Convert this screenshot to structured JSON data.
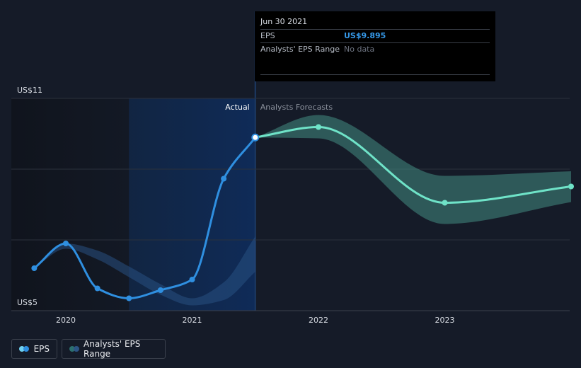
{
  "chart_data": {
    "type": "line",
    "x_label_years": [
      "2020",
      "2021",
      "2022",
      "2023"
    ],
    "y_tick_labels": [
      "US$11",
      "US$5"
    ],
    "ylim": [
      5,
      11
    ],
    "section_labels": {
      "actual": "Actual",
      "forecast": "Analysts Forecasts"
    },
    "series": [
      {
        "name": "EPS",
        "color": "#2f8fe0",
        "points": [
          {
            "x": 2019.75,
            "y": 6.2
          },
          {
            "x": 2020.0,
            "y": 6.9
          },
          {
            "x": 2020.25,
            "y": 5.63
          },
          {
            "x": 2020.5,
            "y": 5.35
          },
          {
            "x": 2020.75,
            "y": 5.58
          },
          {
            "x": 2021.0,
            "y": 5.88
          },
          {
            "x": 2021.25,
            "y": 8.73
          },
          {
            "x": 2021.5,
            "y": 9.895
          }
        ]
      },
      {
        "name": "EPS forecast",
        "color": "#6fe3c8",
        "points": [
          {
            "x": 2021.5,
            "y": 9.895
          },
          {
            "x": 2022.0,
            "y": 10.19
          },
          {
            "x": 2023.0,
            "y": 8.05
          },
          {
            "x": 2024.0,
            "y": 8.51
          }
        ]
      }
    ],
    "actual_range_band": {
      "x": [
        2019.75,
        2020.0,
        2020.25,
        2020.5,
        2020.75,
        2021.0,
        2021.25,
        2021.5
      ],
      "upper": [
        6.2,
        6.9,
        6.7,
        6.25,
        5.75,
        5.35,
        5.8,
        7.1
      ],
      "lower": [
        6.2,
        6.75,
        6.45,
        5.95,
        5.45,
        5.15,
        5.3,
        6.1
      ]
    },
    "forecast_range_band": {
      "x": [
        2021.5,
        2022.0,
        2023.0,
        2024.0
      ],
      "upper": [
        9.895,
        10.53,
        8.81,
        8.94
      ],
      "lower": [
        9.895,
        9.87,
        7.45,
        8.07
      ]
    },
    "tooltip": {
      "date": "Jun 30 2021",
      "eps_label": "EPS",
      "eps_value": "US$9.895",
      "range_label": "Analysts' EPS Range",
      "range_value": "No data"
    },
    "legend": [
      {
        "label": "EPS",
        "colors": [
          "#6fd0f0",
          "#2f8fe0"
        ]
      },
      {
        "label": "Analysts' EPS Range",
        "colors": [
          "#2c6f6f",
          "#2c5585"
        ]
      }
    ],
    "grid": true
  }
}
